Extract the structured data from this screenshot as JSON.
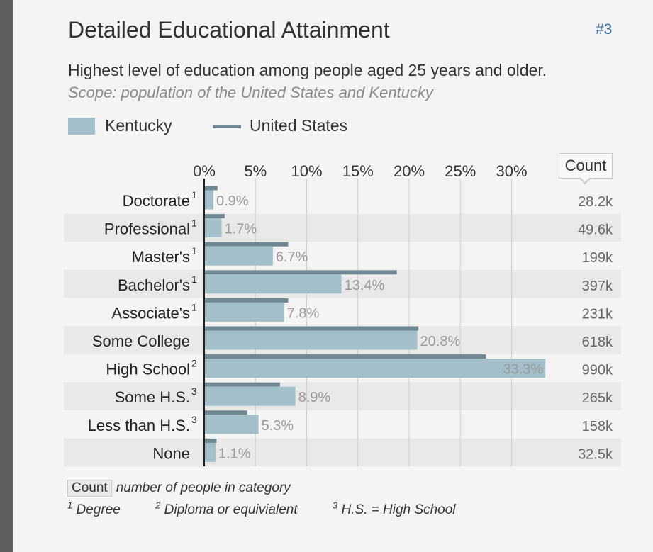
{
  "header": {
    "title": "Detailed Educational Attainment",
    "rank": "#3",
    "subtitle": "Highest level of education among people aged 25 years and older.",
    "scope": "Scope: population of the United States and Kentucky"
  },
  "legend": {
    "kentucky": "Kentucky",
    "united_states": "United States"
  },
  "count_header": "Count",
  "footer": {
    "count_badge": "Count",
    "count_desc": "number of people in category",
    "note1_mark": "1",
    "note1": "Degree",
    "note2_mark": "2",
    "note2": "Diploma or equivialent",
    "note3_mark": "3",
    "note3": "H.S. = High School"
  },
  "colors": {
    "kentucky": "#a2bfca",
    "united_states": "#6f8891",
    "row_stripe": "#e9e9e9"
  },
  "chart_data": {
    "type": "bar",
    "orientation": "horizontal",
    "xticks": [
      "0%",
      "5%",
      "10%",
      "15%",
      "20%",
      "25%",
      "30%"
    ],
    "xlim": [
      0,
      35
    ],
    "grid": true,
    "categories": [
      "Doctorate",
      "Professional",
      "Master's",
      "Bachelor's",
      "Associate's",
      "Some College",
      "High School",
      "Some H.S.",
      "Less than H.S.",
      "None"
    ],
    "category_marks": [
      "1",
      "1",
      "1",
      "1",
      "1",
      "",
      "2",
      "3",
      "3",
      ""
    ],
    "series": [
      {
        "name": "Kentucky",
        "values": [
          0.9,
          1.7,
          6.7,
          13.4,
          7.8,
          20.8,
          33.3,
          8.9,
          5.3,
          1.1
        ],
        "labels": [
          "0.9%",
          "1.7%",
          "6.7%",
          "13.4%",
          "7.8%",
          "20.8%",
          "33.3%",
          "8.9%",
          "5.3%",
          "1.1%"
        ]
      },
      {
        "name": "United States",
        "values": [
          1.3,
          2.0,
          8.2,
          18.8,
          8.2,
          20.9,
          27.5,
          7.4,
          4.2,
          1.2
        ]
      }
    ],
    "counts": [
      "28.2k",
      "49.6k",
      "199k",
      "397k",
      "231k",
      "618k",
      "990k",
      "265k",
      "158k",
      "32.5k"
    ]
  }
}
